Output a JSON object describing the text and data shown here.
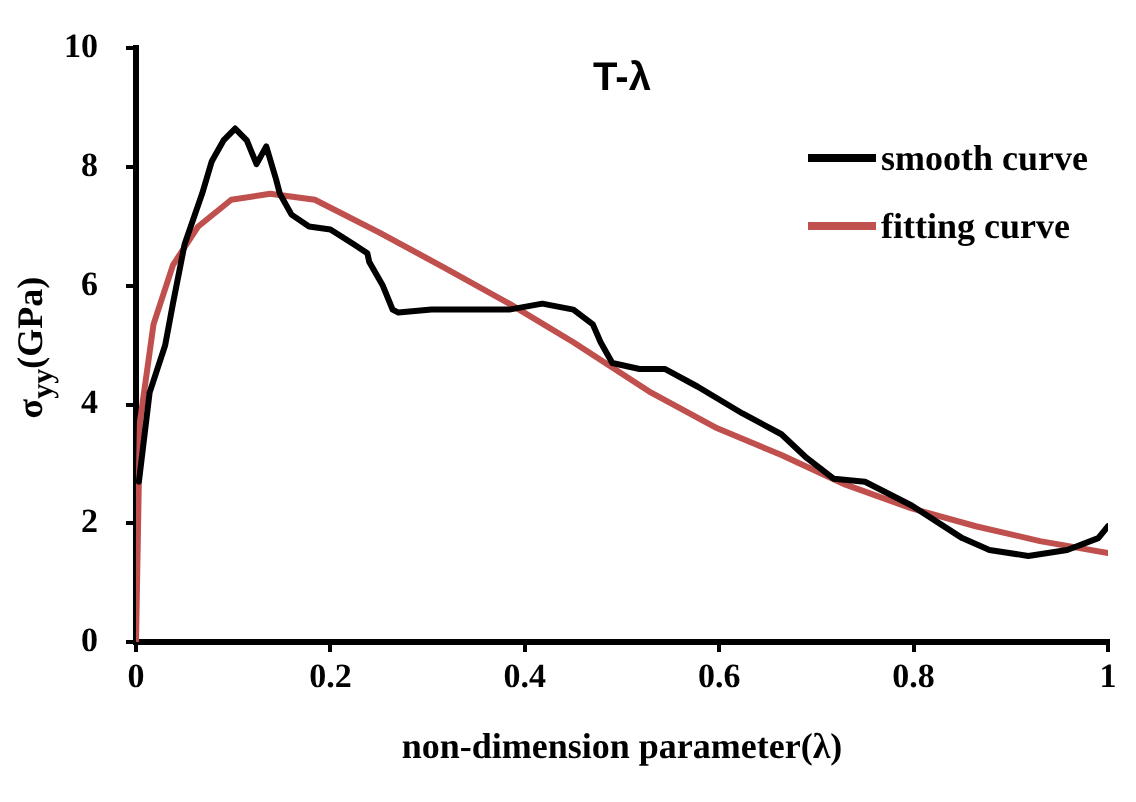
{
  "chart_data": {
    "type": "line",
    "title": "T-λ",
    "xlabel": "non-dimension parameter(λ)",
    "ylabel": "σ$_{yy}$(GPa)",
    "xlim": [
      0,
      1
    ],
    "xticks": [
      0,
      0.2,
      0.4,
      0.6,
      0.8,
      1
    ],
    "ylim": [
      0,
      10
    ],
    "yticks": [
      0,
      2,
      4,
      6,
      8,
      10
    ],
    "grid": false,
    "legend": "top right",
    "marker": "none",
    "line_style": "solid",
    "series": [
      {
        "name": "smooth curve",
        "color": "#000000",
        "x": [
          0.003,
          0.014,
          0.03,
          0.038,
          0.05,
          0.068,
          0.078,
          0.09,
          0.102,
          0.114,
          0.124,
          0.134,
          0.144,
          0.148,
          0.16,
          0.178,
          0.2,
          0.224,
          0.238,
          0.24,
          0.254,
          0.264,
          0.27,
          0.304,
          0.35,
          0.384,
          0.418,
          0.45,
          0.47,
          0.478,
          0.49,
          0.518,
          0.544,
          0.578,
          0.624,
          0.664,
          0.69,
          0.718,
          0.75,
          0.798,
          0.85,
          0.878,
          0.918,
          0.958,
          0.99,
          1.0
        ],
        "values": [
          2.7,
          4.2,
          5.0,
          5.7,
          6.7,
          7.55,
          8.1,
          8.45,
          8.65,
          8.45,
          8.05,
          8.35,
          7.8,
          7.55,
          7.2,
          7.0,
          6.95,
          6.7,
          6.55,
          6.4,
          6.0,
          5.6,
          5.55,
          5.6,
          5.6,
          5.6,
          5.7,
          5.6,
          5.35,
          5.05,
          4.7,
          4.6,
          4.6,
          4.3,
          3.85,
          3.5,
          3.1,
          2.75,
          2.7,
          2.3,
          1.75,
          1.55,
          1.45,
          1.55,
          1.75,
          1.95
        ]
      },
      {
        "name": "fitting curve",
        "color": "#c0504d",
        "x": [
          0,
          0.004,
          0.018,
          0.038,
          0.064,
          0.098,
          0.138,
          0.184,
          0.25,
          0.318,
          0.384,
          0.45,
          0.53,
          0.598,
          0.664,
          0.73,
          0.798,
          0.864,
          0.93,
          1.0
        ],
        "values": [
          0,
          3.7,
          5.35,
          6.35,
          7.0,
          7.45,
          7.55,
          7.45,
          6.9,
          6.3,
          5.7,
          5.05,
          4.2,
          3.6,
          3.15,
          2.65,
          2.25,
          1.95,
          1.7,
          1.5
        ]
      }
    ]
  }
}
